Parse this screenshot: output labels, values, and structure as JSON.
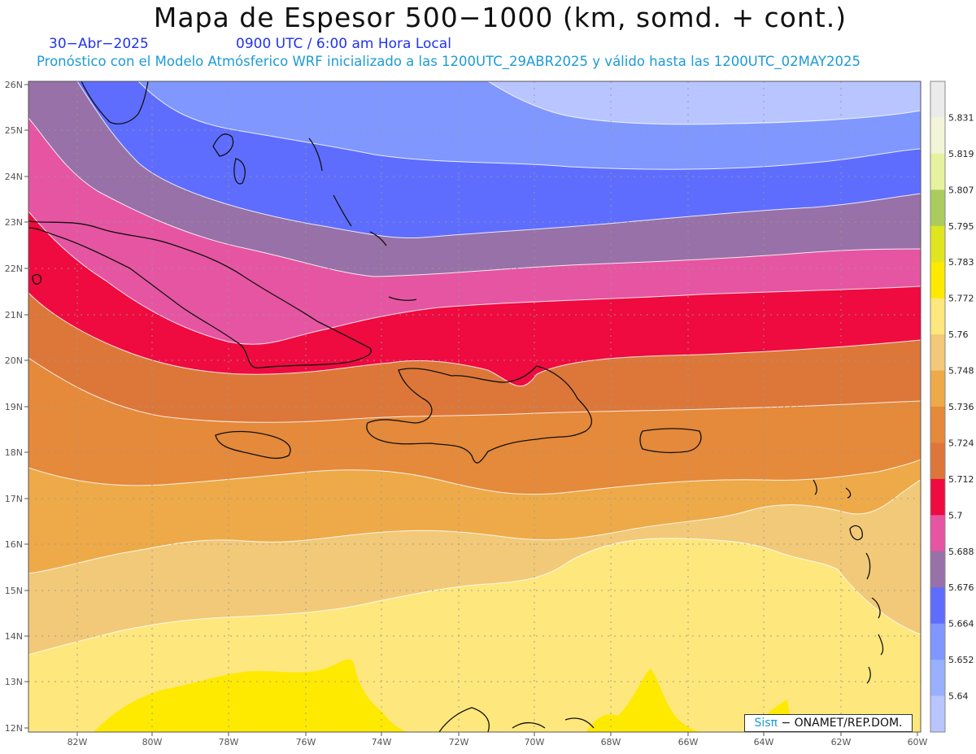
{
  "header": {
    "title": "Mapa de Espesor 500−1000 (km, somd. + cont.)",
    "date": "30−Abr−2025",
    "time": "0900 UTC / 6:00 am Hora Local",
    "model_info": "Pronóstico con el Modelo Atmósferico WRF inicializado a las 1200UTC_29ABR2025 y válido hasta las  1200UTC_02MAY2025"
  },
  "credit": {
    "brand": "Sisπ",
    "org": "− ONAMET/REP.DOM."
  },
  "map": {
    "lat_labels": [
      "26N",
      "25N",
      "24N",
      "23N",
      "22N",
      "21N",
      "20N",
      "19N",
      "18N",
      "17N",
      "16N",
      "15N",
      "14N",
      "13N",
      "12N"
    ],
    "lon_labels": [
      "82W",
      "80W",
      "78W",
      "76W",
      "74W",
      "72W",
      "70W",
      "68W",
      "66W",
      "64W",
      "62W",
      "60W"
    ]
  },
  "legend": {
    "labels": [
      "5.831",
      "5.819",
      "5.807",
      "5.795",
      "5.783",
      "5.772",
      "5.76",
      "5.748",
      "5.736",
      "5.724",
      "5.712",
      "5.7",
      "5.688",
      "5.676",
      "5.664",
      "5.652",
      "5.64"
    ],
    "colors": [
      "#ebebeb",
      "#f3f5d8",
      "#e6f2a0",
      "#aacc5e",
      "#dfe61f",
      "#fdea00",
      "#fee77c",
      "#f2c978",
      "#eeaa48",
      "#e5893a",
      "#dd7739",
      "#ef0a40",
      "#e655a2",
      "#9771a7",
      "#5f6dff",
      "#7f97ff",
      "#98b0ff",
      "#b8c5ff"
    ]
  }
}
